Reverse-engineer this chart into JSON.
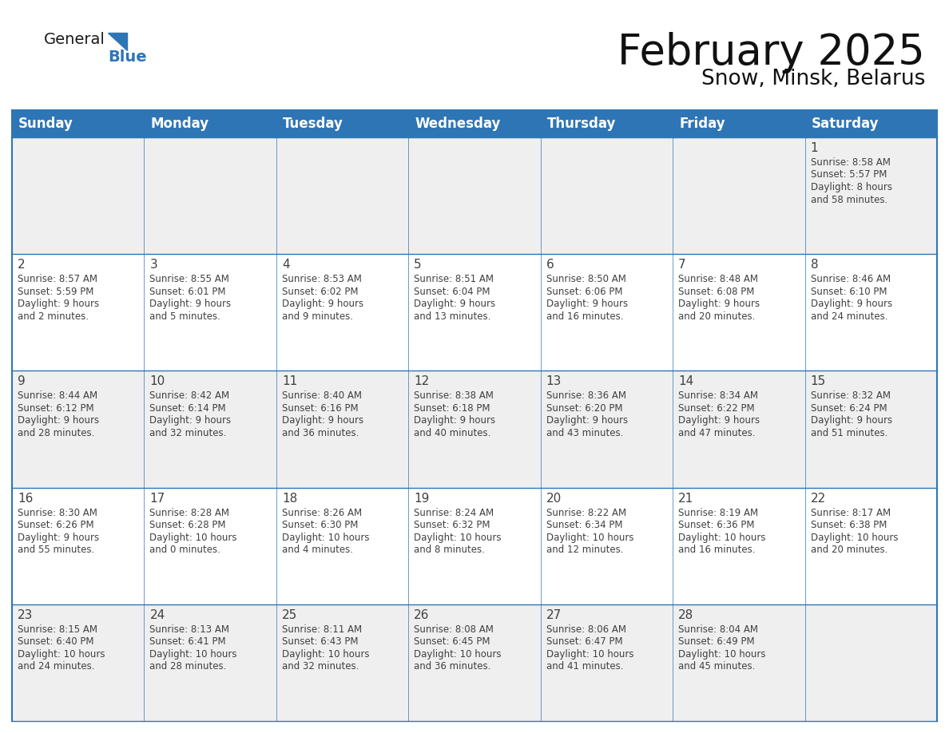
{
  "title": "February 2025",
  "subtitle": "Snow, Minsk, Belarus",
  "header_bg": "#2E75B6",
  "header_text_color": "#FFFFFF",
  "row_bg_light": "#EFEFEF",
  "row_bg_white": "#FFFFFF",
  "border_color": "#2E75B6",
  "text_color": "#404040",
  "day_headers": [
    "Sunday",
    "Monday",
    "Tuesday",
    "Wednesday",
    "Thursday",
    "Friday",
    "Saturday"
  ],
  "title_fontsize": 38,
  "subtitle_fontsize": 19,
  "header_fontsize": 12,
  "cell_day_fontsize": 11,
  "cell_info_fontsize": 8.5,
  "logo_general_size": 14,
  "logo_blue_size": 14,
  "days": [
    {
      "day": 1,
      "col": 6,
      "row": 0,
      "sunrise": "8:58 AM",
      "sunset": "5:57 PM",
      "daylight": "8 hours and 58 minutes."
    },
    {
      "day": 2,
      "col": 0,
      "row": 1,
      "sunrise": "8:57 AM",
      "sunset": "5:59 PM",
      "daylight": "9 hours and 2 minutes."
    },
    {
      "day": 3,
      "col": 1,
      "row": 1,
      "sunrise": "8:55 AM",
      "sunset": "6:01 PM",
      "daylight": "9 hours and 5 minutes."
    },
    {
      "day": 4,
      "col": 2,
      "row": 1,
      "sunrise": "8:53 AM",
      "sunset": "6:02 PM",
      "daylight": "9 hours and 9 minutes."
    },
    {
      "day": 5,
      "col": 3,
      "row": 1,
      "sunrise": "8:51 AM",
      "sunset": "6:04 PM",
      "daylight": "9 hours and 13 minutes."
    },
    {
      "day": 6,
      "col": 4,
      "row": 1,
      "sunrise": "8:50 AM",
      "sunset": "6:06 PM",
      "daylight": "9 hours and 16 minutes."
    },
    {
      "day": 7,
      "col": 5,
      "row": 1,
      "sunrise": "8:48 AM",
      "sunset": "6:08 PM",
      "daylight": "9 hours and 20 minutes."
    },
    {
      "day": 8,
      "col": 6,
      "row": 1,
      "sunrise": "8:46 AM",
      "sunset": "6:10 PM",
      "daylight": "9 hours and 24 minutes."
    },
    {
      "day": 9,
      "col": 0,
      "row": 2,
      "sunrise": "8:44 AM",
      "sunset": "6:12 PM",
      "daylight": "9 hours and 28 minutes."
    },
    {
      "day": 10,
      "col": 1,
      "row": 2,
      "sunrise": "8:42 AM",
      "sunset": "6:14 PM",
      "daylight": "9 hours and 32 minutes."
    },
    {
      "day": 11,
      "col": 2,
      "row": 2,
      "sunrise": "8:40 AM",
      "sunset": "6:16 PM",
      "daylight": "9 hours and 36 minutes."
    },
    {
      "day": 12,
      "col": 3,
      "row": 2,
      "sunrise": "8:38 AM",
      "sunset": "6:18 PM",
      "daylight": "9 hours and 40 minutes."
    },
    {
      "day": 13,
      "col": 4,
      "row": 2,
      "sunrise": "8:36 AM",
      "sunset": "6:20 PM",
      "daylight": "9 hours and 43 minutes."
    },
    {
      "day": 14,
      "col": 5,
      "row": 2,
      "sunrise": "8:34 AM",
      "sunset": "6:22 PM",
      "daylight": "9 hours and 47 minutes."
    },
    {
      "day": 15,
      "col": 6,
      "row": 2,
      "sunrise": "8:32 AM",
      "sunset": "6:24 PM",
      "daylight": "9 hours and 51 minutes."
    },
    {
      "day": 16,
      "col": 0,
      "row": 3,
      "sunrise": "8:30 AM",
      "sunset": "6:26 PM",
      "daylight": "9 hours and 55 minutes."
    },
    {
      "day": 17,
      "col": 1,
      "row": 3,
      "sunrise": "8:28 AM",
      "sunset": "6:28 PM",
      "daylight": "10 hours and 0 minutes."
    },
    {
      "day": 18,
      "col": 2,
      "row": 3,
      "sunrise": "8:26 AM",
      "sunset": "6:30 PM",
      "daylight": "10 hours and 4 minutes."
    },
    {
      "day": 19,
      "col": 3,
      "row": 3,
      "sunrise": "8:24 AM",
      "sunset": "6:32 PM",
      "daylight": "10 hours and 8 minutes."
    },
    {
      "day": 20,
      "col": 4,
      "row": 3,
      "sunrise": "8:22 AM",
      "sunset": "6:34 PM",
      "daylight": "10 hours and 12 minutes."
    },
    {
      "day": 21,
      "col": 5,
      "row": 3,
      "sunrise": "8:19 AM",
      "sunset": "6:36 PM",
      "daylight": "10 hours and 16 minutes."
    },
    {
      "day": 22,
      "col": 6,
      "row": 3,
      "sunrise": "8:17 AM",
      "sunset": "6:38 PM",
      "daylight": "10 hours and 20 minutes."
    },
    {
      "day": 23,
      "col": 0,
      "row": 4,
      "sunrise": "8:15 AM",
      "sunset": "6:40 PM",
      "daylight": "10 hours and 24 minutes."
    },
    {
      "day": 24,
      "col": 1,
      "row": 4,
      "sunrise": "8:13 AM",
      "sunset": "6:41 PM",
      "daylight": "10 hours and 28 minutes."
    },
    {
      "day": 25,
      "col": 2,
      "row": 4,
      "sunrise": "8:11 AM",
      "sunset": "6:43 PM",
      "daylight": "10 hours and 32 minutes."
    },
    {
      "day": 26,
      "col": 3,
      "row": 4,
      "sunrise": "8:08 AM",
      "sunset": "6:45 PM",
      "daylight": "10 hours and 36 minutes."
    },
    {
      "day": 27,
      "col": 4,
      "row": 4,
      "sunrise": "8:06 AM",
      "sunset": "6:47 PM",
      "daylight": "10 hours and 41 minutes."
    },
    {
      "day": 28,
      "col": 5,
      "row": 4,
      "sunrise": "8:04 AM",
      "sunset": "6:49 PM",
      "daylight": "10 hours and 45 minutes."
    }
  ]
}
